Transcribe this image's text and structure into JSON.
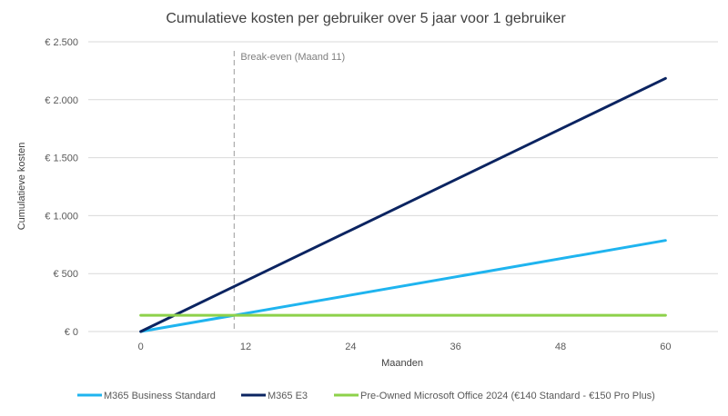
{
  "chart_data": {
    "type": "line",
    "title": "Cumulatieve kosten per gebruiker over 5 jaar voor 1 gebruiker",
    "xlabel": "Maanden",
    "ylabel": "Cumulatieve kosten",
    "xlim": [
      -6,
      66
    ],
    "ylim": [
      0,
      2500
    ],
    "x_ticks": [
      0,
      12,
      24,
      36,
      48,
      60
    ],
    "y_ticks": [
      0,
      500,
      1000,
      1500,
      2000,
      2500
    ],
    "y_tick_labels": [
      "€ 0",
      "€ 500",
      "€ 1.000",
      "€ 1.500",
      "€ 2.000",
      "€ 2.500"
    ],
    "grid": "horizontal",
    "legend": "bottom",
    "series": [
      {
        "name": "M365 Business Standard",
        "color": "#1fb4ef",
        "x": [
          0,
          60
        ],
        "y": [
          0,
          786
        ]
      },
      {
        "name": "M365 E3",
        "color": "#0b2461",
        "x": [
          0,
          60
        ],
        "y": [
          0,
          2184
        ]
      },
      {
        "name": "Pre-Owned Microsoft Office 2024 (€140 Standard - €150 Pro Plus)",
        "color": "#8dd14a",
        "x": [
          0,
          60
        ],
        "y": [
          140,
          140
        ]
      }
    ],
    "annotations": [
      {
        "type": "vline",
        "x": 11,
        "label": "Break-even (Maand 11)",
        "color": "#b0b0b0"
      }
    ]
  }
}
